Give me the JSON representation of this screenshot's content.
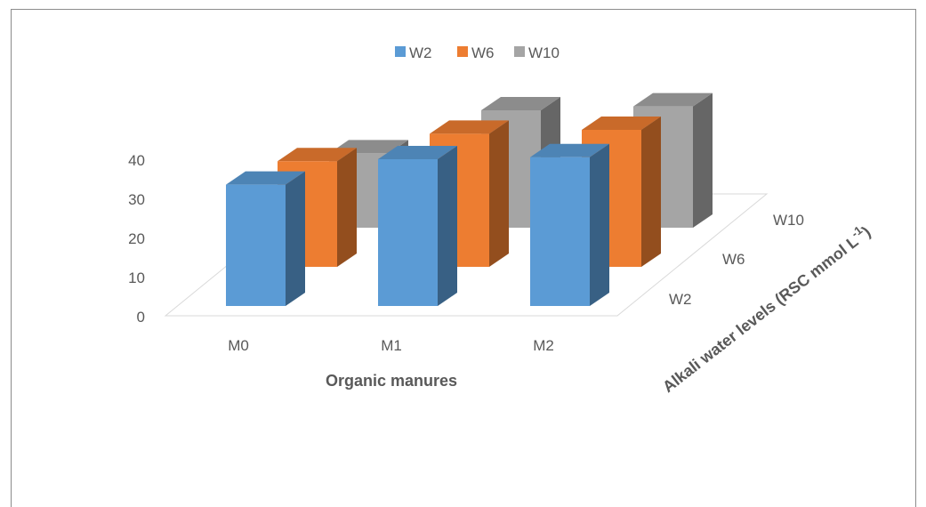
{
  "chart_data": {
    "type": "bar",
    "subtype": "3d-column",
    "categories": [
      "M0",
      "M1",
      "M2"
    ],
    "depth_labels": [
      "W2",
      "W6",
      "W10"
    ],
    "series": [
      {
        "name": "W2",
        "color": "#5b9bd5",
        "values": [
          31,
          37.5,
          38
        ]
      },
      {
        "name": "W6",
        "color": "#ed7d31",
        "values": [
          27,
          34,
          35
        ]
      },
      {
        "name": "W10",
        "color": "#a5a5a5",
        "values": [
          19,
          30,
          31
        ]
      }
    ],
    "y_ticks": [
      "0",
      "10",
      "20",
      "30",
      "40"
    ],
    "ylim": [
      0,
      40
    ],
    "xlabel": "Organic manures",
    "zlabel_main": "Alkali water  levels (RSC mmol L",
    "zlabel_sup": "-1",
    "zlabel_end": ")",
    "legend_position": "top"
  }
}
